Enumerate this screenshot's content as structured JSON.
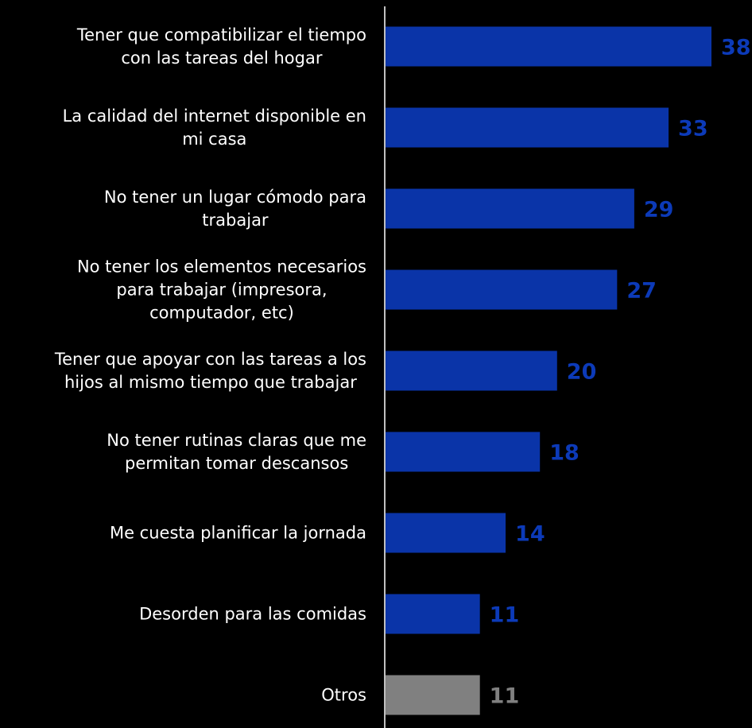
{
  "chart_data": {
    "type": "bar",
    "orientation": "horizontal",
    "categories": [
      [
        "Tener que compatibilizar el tiempo",
        "con las tareas del hogar"
      ],
      [
        "La calidad del internet disponible en",
        "mi casa"
      ],
      [
        "No tener un lugar cómodo para",
        "trabajar"
      ],
      [
        "No tener los elementos necesarios",
        "para trabajar (impresora,",
        "computador, etc)"
      ],
      [
        "Tener que apoyar con las tareas a los",
        "hijos al mismo tiempo que trabajar"
      ],
      [
        "No tener rutinas claras que me",
        "permitan tomar descansos"
      ],
      [
        "Me cuesta planificar la jornada"
      ],
      [
        "Desorden para las comidas"
      ],
      [
        "Otros"
      ]
    ],
    "values": [
      38,
      33,
      29,
      27,
      20,
      18,
      14,
      11,
      11
    ],
    "value_labels": [
      "38",
      "33",
      "29",
      "27",
      "20",
      "18",
      "14",
      "11",
      "11"
    ],
    "bar_colors": [
      "#0a34a8",
      "#0a34a8",
      "#0a34a8",
      "#0a34a8",
      "#0a34a8",
      "#0a34a8",
      "#0a34a8",
      "#0a34a8",
      "#808080"
    ],
    "value_label_colors": [
      "#0c3ab8",
      "#0c3ab8",
      "#0c3ab8",
      "#0c3ab8",
      "#0c3ab8",
      "#0c3ab8",
      "#0c3ab8",
      "#0c3ab8",
      "#808080"
    ],
    "title": "",
    "xlabel": "",
    "ylabel": "",
    "xlim": [
      0,
      38
    ],
    "grid": false,
    "legend": "none",
    "axis_color": "#ffffff",
    "label_color": "#ffffff",
    "background": "#000000"
  }
}
